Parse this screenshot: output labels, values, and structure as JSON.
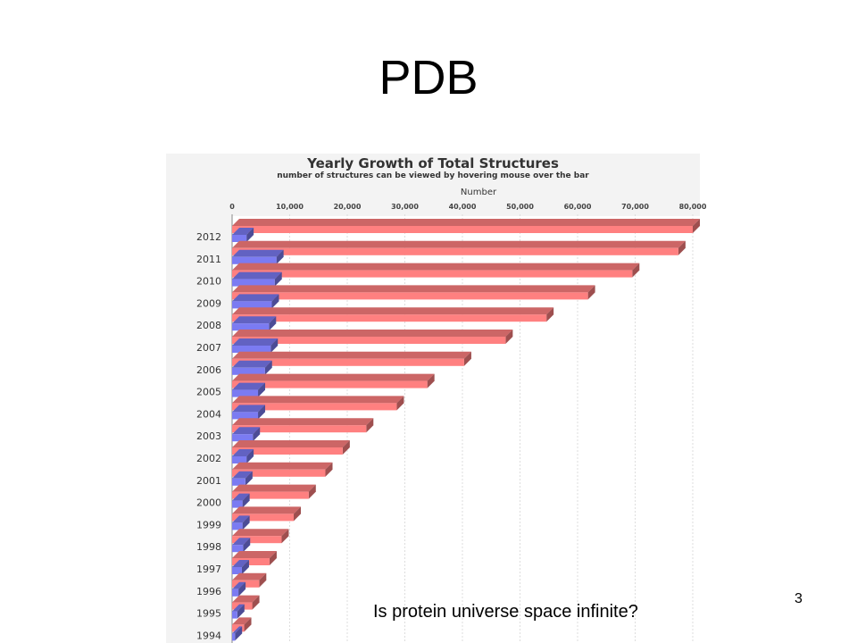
{
  "slide": {
    "title": "PDB",
    "question": "Is protein universe space infinite?",
    "page_number": "3"
  },
  "colors": {
    "total_bar": "#ff8080",
    "yearly_bar": "#7b7bf2"
  },
  "chart_data": {
    "type": "bar",
    "orientation": "horizontal",
    "title": "Yearly Growth of Total Structures",
    "subtitle": "number of structures can be viewed by hovering mouse over the bar",
    "xlabel": "Number",
    "ylabel": "",
    "xlim": [
      0,
      80000
    ],
    "x_ticks": [
      "0",
      "10,000",
      "20,000",
      "30,000",
      "40,000",
      "50,000",
      "60,000",
      "70,000",
      "80,000"
    ],
    "grid": true,
    "legend": "none",
    "categories": [
      "2012",
      "2011",
      "2010",
      "2009",
      "2008",
      "2007",
      "2006",
      "2005",
      "2004",
      "2003",
      "2002",
      "2001",
      "2000",
      "1999",
      "1998",
      "1997",
      "1996",
      "1995",
      "1994"
    ],
    "series": [
      {
        "values": [
          80000,
          77500,
          69500,
          61800,
          54600,
          47500,
          40300,
          33900,
          28600,
          23300,
          19200,
          16200,
          13300,
          10700,
          8600,
          6500,
          4700,
          3500,
          2100
        ]
      },
      {
        "values": [
          2500,
          7700,
          7400,
          6900,
          6400,
          6700,
          5700,
          4500,
          4500,
          3600,
          2500,
          2300,
          1800,
          1800,
          1900,
          1700,
          1100,
          900,
          500
        ]
      }
    ]
  }
}
